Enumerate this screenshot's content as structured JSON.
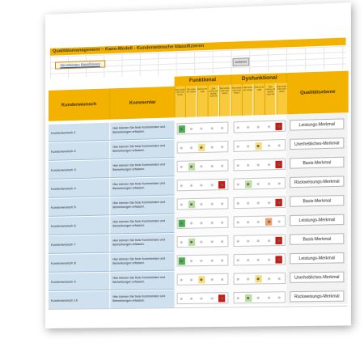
{
  "header": {
    "title": "Qualitätsmanagement – Kano-Modell - Kundenwünsche klassifizieren",
    "classify_link": "Stimmkästen klassifizieren",
    "small_button": "sortieren"
  },
  "columns": {
    "wish": "Kundenwunsch",
    "comment": "Kommentar",
    "functional": "Funktional",
    "dysfunctional": "Dysfunktional",
    "quality": "Qualitätsebene",
    "answer_options": [
      "Das würde mich sehr freuen",
      "Das setze ich voraus",
      "Das ist mir egal",
      "Das nehme ich gerade noch hin",
      "Das würde mich sehr stören"
    ]
  },
  "colors": {
    "header": "#f3b200",
    "row_blue": "#cfe0ef",
    "green": "#4caf50",
    "light_green": "#b9dea0",
    "yellow": "#f6de7a",
    "orange": "#f0a070",
    "red": "#cc1a12"
  },
  "rows": [
    {
      "wish": "Kundenwunsch 1",
      "comment": "Hier können Sie freie Kommentare und Bemerkungen erfassen.",
      "functional": 1,
      "dysfunctional": 5,
      "quality": "Leistungs-Merkmal"
    },
    {
      "wish": "Kundenwunsch 2",
      "comment": "Hier können Sie freie Kommentare und Bemerkungen erfassen.",
      "functional": 3,
      "dysfunctional": 3,
      "quality": "Unerhebliches-Merkmal"
    },
    {
      "wish": "Kundenwunsch 3",
      "comment": "Hier können Sie freie Kommentare und Bemerkungen erfassen.",
      "functional": 2,
      "dysfunctional": 5,
      "quality": "Basis-Merkmal"
    },
    {
      "wish": "Kundenwunsch 4",
      "comment": "Hier können Sie freie Kommentare und Bemerkungen erfassen.",
      "functional": 5,
      "dysfunctional": 2,
      "quality": "Rückweisungs-Merkmal"
    },
    {
      "wish": "Kundenwunsch 5",
      "comment": "Hier können Sie freie Kommentare und Bemerkungen erfassen.",
      "functional": 2,
      "dysfunctional": 5,
      "quality": "Basis-Merkmal"
    },
    {
      "wish": "Kundenwunsch 6",
      "comment": "Hier können Sie freie Kommentare und Bemerkungen erfassen.",
      "functional": 1,
      "dysfunctional": 4,
      "quality": "Leistungs-Merkmal"
    },
    {
      "wish": "Kundenwunsch 7",
      "comment": "Hier können Sie freie Kommentare und Bemerkungen erfassen.",
      "functional": 2,
      "dysfunctional": 5,
      "quality": "Basis-Merkmal"
    },
    {
      "wish": "Kundenwunsch 8",
      "comment": "Hier können Sie freie Kommentare und Bemerkungen erfassen.",
      "functional": 1,
      "dysfunctional": 5,
      "quality": "Leistungs-Merkmal"
    },
    {
      "wish": "Kundenwunsch 9",
      "comment": "Hier können Sie freie Kommentare und Bemerkungen erfassen.",
      "functional": 3,
      "dysfunctional": 3,
      "quality": "Unerhebliches-Merkmal"
    },
    {
      "wish": "Kundenwunsch 10",
      "comment": "Hier können Sie freie Kommentare und Bemerkungen erfassen.",
      "functional": 5,
      "dysfunctional": 2,
      "quality": "Rückweisungs-Merkmal"
    }
  ]
}
